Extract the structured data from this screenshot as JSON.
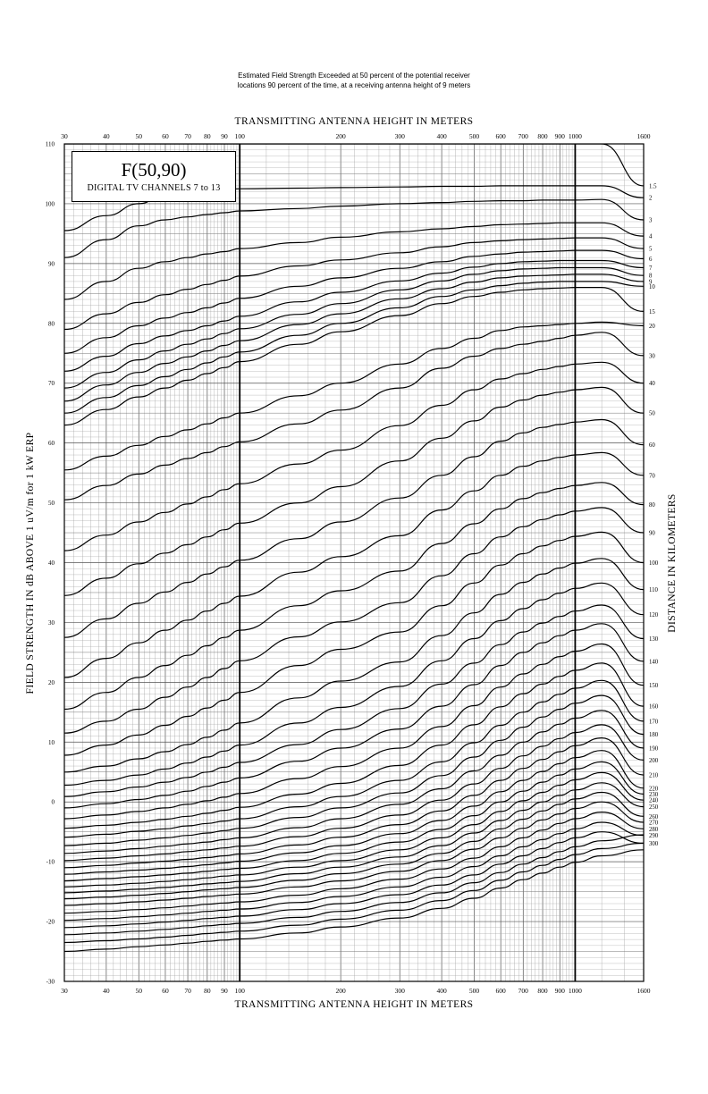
{
  "caption": {
    "line1": "Estimated Field Strength Exceeded at 50 percent of the potential receiver",
    "line2": "locations 90 percent of the time, at a receiving antenna height of 9 meters"
  },
  "box": {
    "main": "F(50,90)",
    "sub": "DIGITAL TV CHANNELS 7 to 13"
  },
  "chart_data": {
    "type": "line",
    "title": "F(50,90)",
    "subtitle": "DIGITAL TV CHANNELS 7 to 13",
    "xlabel": "TRANSMITTING ANTENNA HEIGHT IN METERS",
    "ylabel": "FIELD STRENGTH IN dB ABOVE 1 uV/m for 1 kW ERP",
    "y2label": "DISTANCE IN KILOMETERS",
    "xscale": "log",
    "xlim": [
      30,
      1600
    ],
    "ylim": [
      -30,
      110
    ],
    "grid": true,
    "x_ticks": [
      30,
      40,
      50,
      60,
      70,
      80,
      90,
      100,
      200,
      300,
      400,
      500,
      600,
      700,
      800,
      900,
      1000,
      1600
    ],
    "x_tick_labels": [
      "30",
      "40",
      "50",
      "60",
      "70",
      "80",
      "90",
      "100",
      "200",
      "300",
      "400",
      "500",
      "600",
      "700",
      "800",
      "900",
      "1000",
      "1600"
    ],
    "y_ticks": [
      110,
      100,
      90,
      80,
      70,
      60,
      50,
      40,
      30,
      20,
      10,
      0,
      -10,
      -20,
      -30
    ],
    "y_tick_labels": [
      "110",
      "100",
      "90",
      "80",
      "70",
      "60",
      "50",
      "40",
      "30",
      "20",
      "10",
      "0",
      "-10",
      "-20",
      "-30"
    ],
    "x": [
      30,
      40,
      50,
      60,
      70,
      80,
      90,
      100,
      150,
      200,
      300,
      400,
      500,
      600,
      700,
      800,
      900,
      1000,
      1200,
      1600
    ],
    "series": [
      {
        "name": "1.5",
        "values": [
          110,
          110,
          110,
          110,
          110,
          110,
          110,
          110,
          110,
          110,
          110,
          110,
          110,
          110,
          110,
          110,
          110,
          110,
          110,
          103.0
        ]
      },
      {
        "name": "2",
        "values": [
          95.5,
          98.0,
          100.0,
          101.5,
          102.0,
          102.2,
          102.4,
          102.5,
          102.6,
          102.7,
          102.8,
          102.9,
          102.9,
          103.0,
          103.0,
          103.0,
          103.0,
          103.0,
          103.0,
          101.0
        ]
      },
      {
        "name": "3",
        "values": [
          91.0,
          94.0,
          96.3,
          97.3,
          97.8,
          98.2,
          98.5,
          98.8,
          99.2,
          99.6,
          100.0,
          100.2,
          100.4,
          100.5,
          100.5,
          100.6,
          100.6,
          100.6,
          100.7,
          97.3
        ]
      },
      {
        "name": "4",
        "values": [
          84.0,
          87.0,
          89.2,
          90.3,
          91.0,
          91.6,
          92.0,
          92.5,
          93.5,
          94.4,
          95.3,
          95.8,
          96.2,
          96.5,
          96.6,
          96.7,
          96.8,
          96.8,
          96.8,
          94.6
        ]
      },
      {
        "name": "5",
        "values": [
          79.0,
          81.6,
          83.5,
          84.8,
          85.7,
          86.5,
          87.2,
          87.9,
          89.6,
          90.6,
          91.8,
          92.8,
          93.5,
          93.8,
          94.0,
          94.1,
          94.2,
          94.3,
          94.3,
          92.5
        ]
      },
      {
        "name": "6",
        "values": [
          75.0,
          77.6,
          79.6,
          80.9,
          81.8,
          82.6,
          83.4,
          84.2,
          86.2,
          87.6,
          89.2,
          90.3,
          91.2,
          91.6,
          91.9,
          92.0,
          92.1,
          92.2,
          92.2,
          90.8
        ]
      },
      {
        "name": "7",
        "values": [
          72.0,
          74.5,
          76.6,
          77.9,
          78.8,
          79.6,
          80.4,
          81.2,
          83.6,
          85.2,
          87.1,
          88.4,
          89.4,
          90.0,
          90.3,
          90.4,
          90.5,
          90.5,
          90.5,
          89.3
        ]
      },
      {
        "name": "8",
        "values": [
          69.2,
          71.8,
          73.9,
          75.4,
          76.5,
          77.4,
          78.3,
          79.1,
          81.5,
          83.3,
          85.6,
          87.1,
          88.2,
          88.8,
          89.1,
          89.2,
          89.3,
          89.3,
          89.3,
          88.0
        ]
      },
      {
        "name": "9",
        "values": [
          67.0,
          69.7,
          71.8,
          73.3,
          74.4,
          75.4,
          76.3,
          77.1,
          79.8,
          81.6,
          84.1,
          85.8,
          86.9,
          87.6,
          87.9,
          88.0,
          88.1,
          88.2,
          88.2,
          87.0
        ]
      },
      {
        "name": "10",
        "values": [
          65.0,
          67.6,
          69.6,
          71.1,
          72.3,
          73.4,
          74.4,
          75.2,
          78.0,
          80.0,
          82.6,
          84.5,
          85.6,
          86.3,
          86.7,
          86.9,
          87.0,
          87.0,
          87.0,
          86.2
        ]
      },
      {
        "name": "15",
        "values": [
          63.0,
          65.6,
          67.7,
          69.2,
          70.5,
          71.6,
          72.6,
          73.6,
          76.5,
          78.6,
          81.3,
          83.3,
          84.5,
          85.2,
          85.6,
          85.8,
          85.9,
          86.0,
          86.0,
          82.0
        ]
      },
      {
        "name": "20",
        "values": [
          55.5,
          57.8,
          59.6,
          61.1,
          62.2,
          63.2,
          64.2,
          65.0,
          67.9,
          70.0,
          73.2,
          75.8,
          77.5,
          78.8,
          79.4,
          79.6,
          79.8,
          80.0,
          80.2,
          79.6
        ]
      },
      {
        "name": "30",
        "values": [
          50.5,
          52.9,
          54.8,
          56.3,
          57.4,
          58.4,
          59.4,
          60.2,
          63.2,
          65.5,
          69.2,
          72.5,
          74.5,
          75.8,
          76.5,
          77.0,
          77.5,
          78.0,
          78.5,
          74.6
        ]
      },
      {
        "name": "40",
        "values": [
          42.0,
          44.6,
          46.8,
          48.4,
          49.8,
          51.0,
          52.2,
          53.2,
          56.5,
          58.8,
          62.9,
          66.3,
          68.9,
          70.7,
          71.6,
          72.3,
          72.8,
          73.2,
          73.5,
          70.0
        ]
      },
      {
        "name": "50",
        "values": [
          34.5,
          37.4,
          39.8,
          41.6,
          43.0,
          44.3,
          45.5,
          46.6,
          50.0,
          52.7,
          57.0,
          60.8,
          63.7,
          66.0,
          67.2,
          68.0,
          68.5,
          68.9,
          69.3,
          65.0
        ]
      },
      {
        "name": "60",
        "values": [
          27.5,
          30.6,
          33.2,
          35.1,
          36.7,
          38.1,
          39.3,
          40.4,
          44.0,
          46.8,
          50.8,
          54.6,
          57.7,
          60.3,
          61.7,
          62.6,
          63.1,
          63.5,
          63.9,
          59.7
        ]
      },
      {
        "name": "70",
        "values": [
          20.8,
          24.0,
          26.6,
          28.7,
          30.4,
          31.9,
          33.2,
          34.4,
          38.4,
          41.0,
          44.5,
          48.8,
          52.0,
          54.6,
          56.1,
          57.0,
          57.6,
          58.0,
          58.4,
          54.6
        ]
      },
      {
        "name": "80",
        "values": [
          15.5,
          18.3,
          20.8,
          22.8,
          24.5,
          26.1,
          27.5,
          28.7,
          32.8,
          35.3,
          38.6,
          43.2,
          46.5,
          49.0,
          50.7,
          51.7,
          52.4,
          52.9,
          53.4,
          49.7
        ]
      },
      {
        "name": "90",
        "values": [
          11.5,
          13.5,
          15.5,
          17.5,
          19.2,
          20.8,
          22.3,
          23.6,
          27.6,
          30.1,
          33.3,
          37.8,
          41.5,
          44.3,
          46.0,
          47.2,
          48.0,
          48.6,
          49.2,
          45.0
        ]
      },
      {
        "name": "100",
        "values": [
          7.8,
          9.5,
          11.2,
          12.8,
          14.3,
          15.7,
          17.0,
          18.3,
          22.8,
          25.5,
          28.4,
          32.8,
          36.6,
          39.6,
          41.5,
          42.8,
          43.7,
          44.4,
          45.1,
          40.0
        ]
      },
      {
        "name": "110",
        "values": [
          5.0,
          6.0,
          7.2,
          8.4,
          9.6,
          10.8,
          12.0,
          13.2,
          17.4,
          20.2,
          23.4,
          27.8,
          31.6,
          34.7,
          36.7,
          38.1,
          39.1,
          39.9,
          40.7,
          35.5
        ]
      },
      {
        "name": "120",
        "values": [
          2.8,
          3.6,
          4.5,
          5.5,
          6.5,
          7.5,
          8.5,
          9.5,
          13.2,
          15.8,
          19.3,
          23.6,
          27.3,
          30.3,
          32.3,
          33.8,
          34.9,
          35.7,
          36.6,
          31.3
        ]
      },
      {
        "name": "130",
        "values": [
          0.9,
          1.7,
          2.5,
          3.3,
          4.1,
          5.0,
          5.8,
          6.6,
          9.6,
          12.1,
          15.6,
          19.7,
          23.2,
          26.3,
          28.4,
          29.9,
          31.0,
          31.9,
          32.9,
          27.3
        ]
      },
      {
        "name": "140",
        "values": [
          -1.0,
          -0.3,
          0.4,
          1.1,
          1.8,
          2.6,
          3.3,
          4.0,
          6.8,
          9.0,
          12.2,
          16.0,
          19.6,
          22.8,
          25.0,
          26.6,
          27.8,
          28.7,
          29.8,
          23.5
        ]
      },
      {
        "name": "150",
        "values": [
          -2.8,
          -2.2,
          -1.6,
          -1.0,
          -0.4,
          0.2,
          0.8,
          1.4,
          3.9,
          5.9,
          9.0,
          12.6,
          16.1,
          19.2,
          21.4,
          23.0,
          24.3,
          25.2,
          26.4,
          19.5
        ]
      },
      {
        "name": "160",
        "values": [
          -4.4,
          -3.9,
          -3.4,
          -2.9,
          -2.4,
          -1.9,
          -1.4,
          -0.9,
          1.3,
          3.1,
          6.1,
          9.5,
          12.9,
          15.9,
          18.1,
          19.7,
          21.0,
          22.0,
          23.2,
          16.0
        ]
      },
      {
        "name": "170",
        "values": [
          -5.9,
          -5.4,
          -4.9,
          -4.5,
          -4.0,
          -3.6,
          -3.2,
          -2.8,
          -0.8,
          0.9,
          3.6,
          6.7,
          9.9,
          12.8,
          15.0,
          16.7,
          18.0,
          19.0,
          20.3,
          13.5
        ]
      },
      {
        "name": "180",
        "values": [
          -7.3,
          -6.9,
          -6.4,
          -6.0,
          -5.6,
          -5.2,
          -4.8,
          -4.4,
          -2.6,
          -1.0,
          1.5,
          4.4,
          7.5,
          10.3,
          12.5,
          14.2,
          15.5,
          16.5,
          17.8,
          11.3
        ]
      },
      {
        "name": "190",
        "values": [
          -8.6,
          -8.2,
          -7.8,
          -7.4,
          -7.0,
          -6.7,
          -6.3,
          -6.0,
          -4.3,
          -2.8,
          -0.4,
          2.2,
          5.2,
          7.8,
          10.0,
          11.7,
          13.0,
          14.0,
          15.3,
          9.0
        ]
      },
      {
        "name": "200",
        "values": [
          -9.8,
          -9.4,
          -9.0,
          -8.7,
          -8.3,
          -8.0,
          -7.7,
          -7.4,
          -5.8,
          -4.4,
          -2.2,
          0.3,
          3.0,
          5.6,
          7.7,
          9.3,
          10.6,
          11.6,
          12.9,
          7.0
        ]
      },
      {
        "name": "210",
        "values": [
          -11.0,
          -10.6,
          -10.2,
          -9.9,
          -9.6,
          -9.3,
          -9.0,
          -8.7,
          -7.2,
          -5.9,
          -3.8,
          -1.5,
          1.1,
          3.6,
          5.6,
          7.1,
          8.4,
          9.4,
          10.7,
          4.5
        ]
      },
      {
        "name": "220",
        "values": [
          -12.1,
          -11.7,
          -11.4,
          -11.1,
          -10.8,
          -10.5,
          -10.2,
          -9.9,
          -8.5,
          -7.3,
          -5.3,
          -3.1,
          -0.7,
          1.7,
          3.6,
          5.1,
          6.4,
          7.4,
          8.6,
          2.3
        ]
      },
      {
        "name": "230",
        "values": [
          -13.2,
          -12.8,
          -12.5,
          -12.2,
          -11.9,
          -11.6,
          -11.3,
          -11.1,
          -9.8,
          -8.6,
          -6.7,
          -4.6,
          -2.3,
          0.0,
          1.8,
          3.3,
          4.5,
          5.5,
          6.7,
          1.3
        ]
      },
      {
        "name": "240",
        "values": [
          -14.2,
          -13.9,
          -13.6,
          -13.3,
          -13.0,
          -12.7,
          -12.4,
          -12.2,
          -10.9,
          -9.8,
          -8.0,
          -6.0,
          -3.8,
          -1.6,
          0.2,
          1.6,
          2.8,
          3.7,
          4.9,
          0.3
        ]
      },
      {
        "name": "250",
        "values": [
          -15.2,
          -14.9,
          -14.6,
          -14.3,
          -14.0,
          -13.7,
          -13.5,
          -13.3,
          -12.0,
          -10.9,
          -9.2,
          -7.3,
          -5.2,
          -3.1,
          -1.4,
          0.0,
          1.1,
          2.0,
          3.2,
          -0.8
        ]
      },
      {
        "name": "260",
        "values": [
          -16.2,
          -15.9,
          -15.6,
          -15.3,
          -15.0,
          -14.7,
          -14.5,
          -14.3,
          -13.1,
          -12.0,
          -10.4,
          -8.6,
          -6.6,
          -4.5,
          -2.9,
          -1.5,
          -0.4,
          0.5,
          1.6,
          -2.4
        ]
      },
      {
        "name": "270",
        "values": [
          -17.3,
          -17.0,
          -16.7,
          -16.4,
          -16.1,
          -15.8,
          -15.6,
          -15.4,
          -14.2,
          -13.2,
          -11.6,
          -9.8,
          -7.9,
          -6.0,
          -4.4,
          -3.0,
          -2.0,
          -1.1,
          0.0,
          -3.4
        ]
      },
      {
        "name": "280",
        "values": [
          -18.6,
          -18.3,
          -18.0,
          -17.7,
          -17.4,
          -17.1,
          -16.9,
          -16.7,
          -15.6,
          -14.5,
          -12.9,
          -11.2,
          -9.4,
          -7.5,
          -6.0,
          -4.7,
          -3.6,
          -2.8,
          -1.7,
          -4.5
        ]
      },
      {
        "name": "290",
        "values": [
          -19.8,
          -19.5,
          -19.2,
          -18.9,
          -18.6,
          -18.3,
          -18.1,
          -17.9,
          -16.8,
          -15.8,
          -14.2,
          -12.6,
          -10.8,
          -9.0,
          -7.5,
          -6.3,
          -5.3,
          -4.5,
          -3.4,
          -5.6
        ]
      },
      {
        "name": "300",
        "values": [
          -21.0,
          -20.7,
          -20.4,
          -20.1,
          -19.8,
          -19.5,
          -19.3,
          -19.1,
          -18.0,
          -17.0,
          -15.5,
          -13.9,
          -12.2,
          -10.4,
          -9.0,
          -7.8,
          -6.8,
          -6.0,
          -5.0,
          -6.9
        ]
      },
      {
        "name": "",
        "values": [
          -22.2,
          -21.9,
          -21.6,
          -21.3,
          -21.0,
          -20.7,
          -20.5,
          -20.3,
          -19.3,
          -18.3,
          -16.8,
          -15.2,
          -13.5,
          -11.8,
          -10.4,
          -9.3,
          -8.3,
          -7.5,
          -6.5,
          -5.5
        ]
      },
      {
        "name": "",
        "values": [
          -23.5,
          -23.2,
          -22.9,
          -22.6,
          -22.3,
          -22.0,
          -21.8,
          -21.6,
          -20.6,
          -19.6,
          -18.1,
          -16.5,
          -14.8,
          -13.1,
          -11.7,
          -10.6,
          -9.6,
          -8.8,
          -7.8,
          -6.9
        ]
      },
      {
        "name": "",
        "values": [
          -25.0,
          -24.6,
          -24.2,
          -23.9,
          -23.6,
          -23.3,
          -23.1,
          -22.9,
          -21.9,
          -20.9,
          -19.4,
          -17.8,
          -16.1,
          -14.4,
          -13.0,
          -11.9,
          -10.9,
          -10.1,
          -9.0,
          -8.0
        ]
      }
    ]
  }
}
